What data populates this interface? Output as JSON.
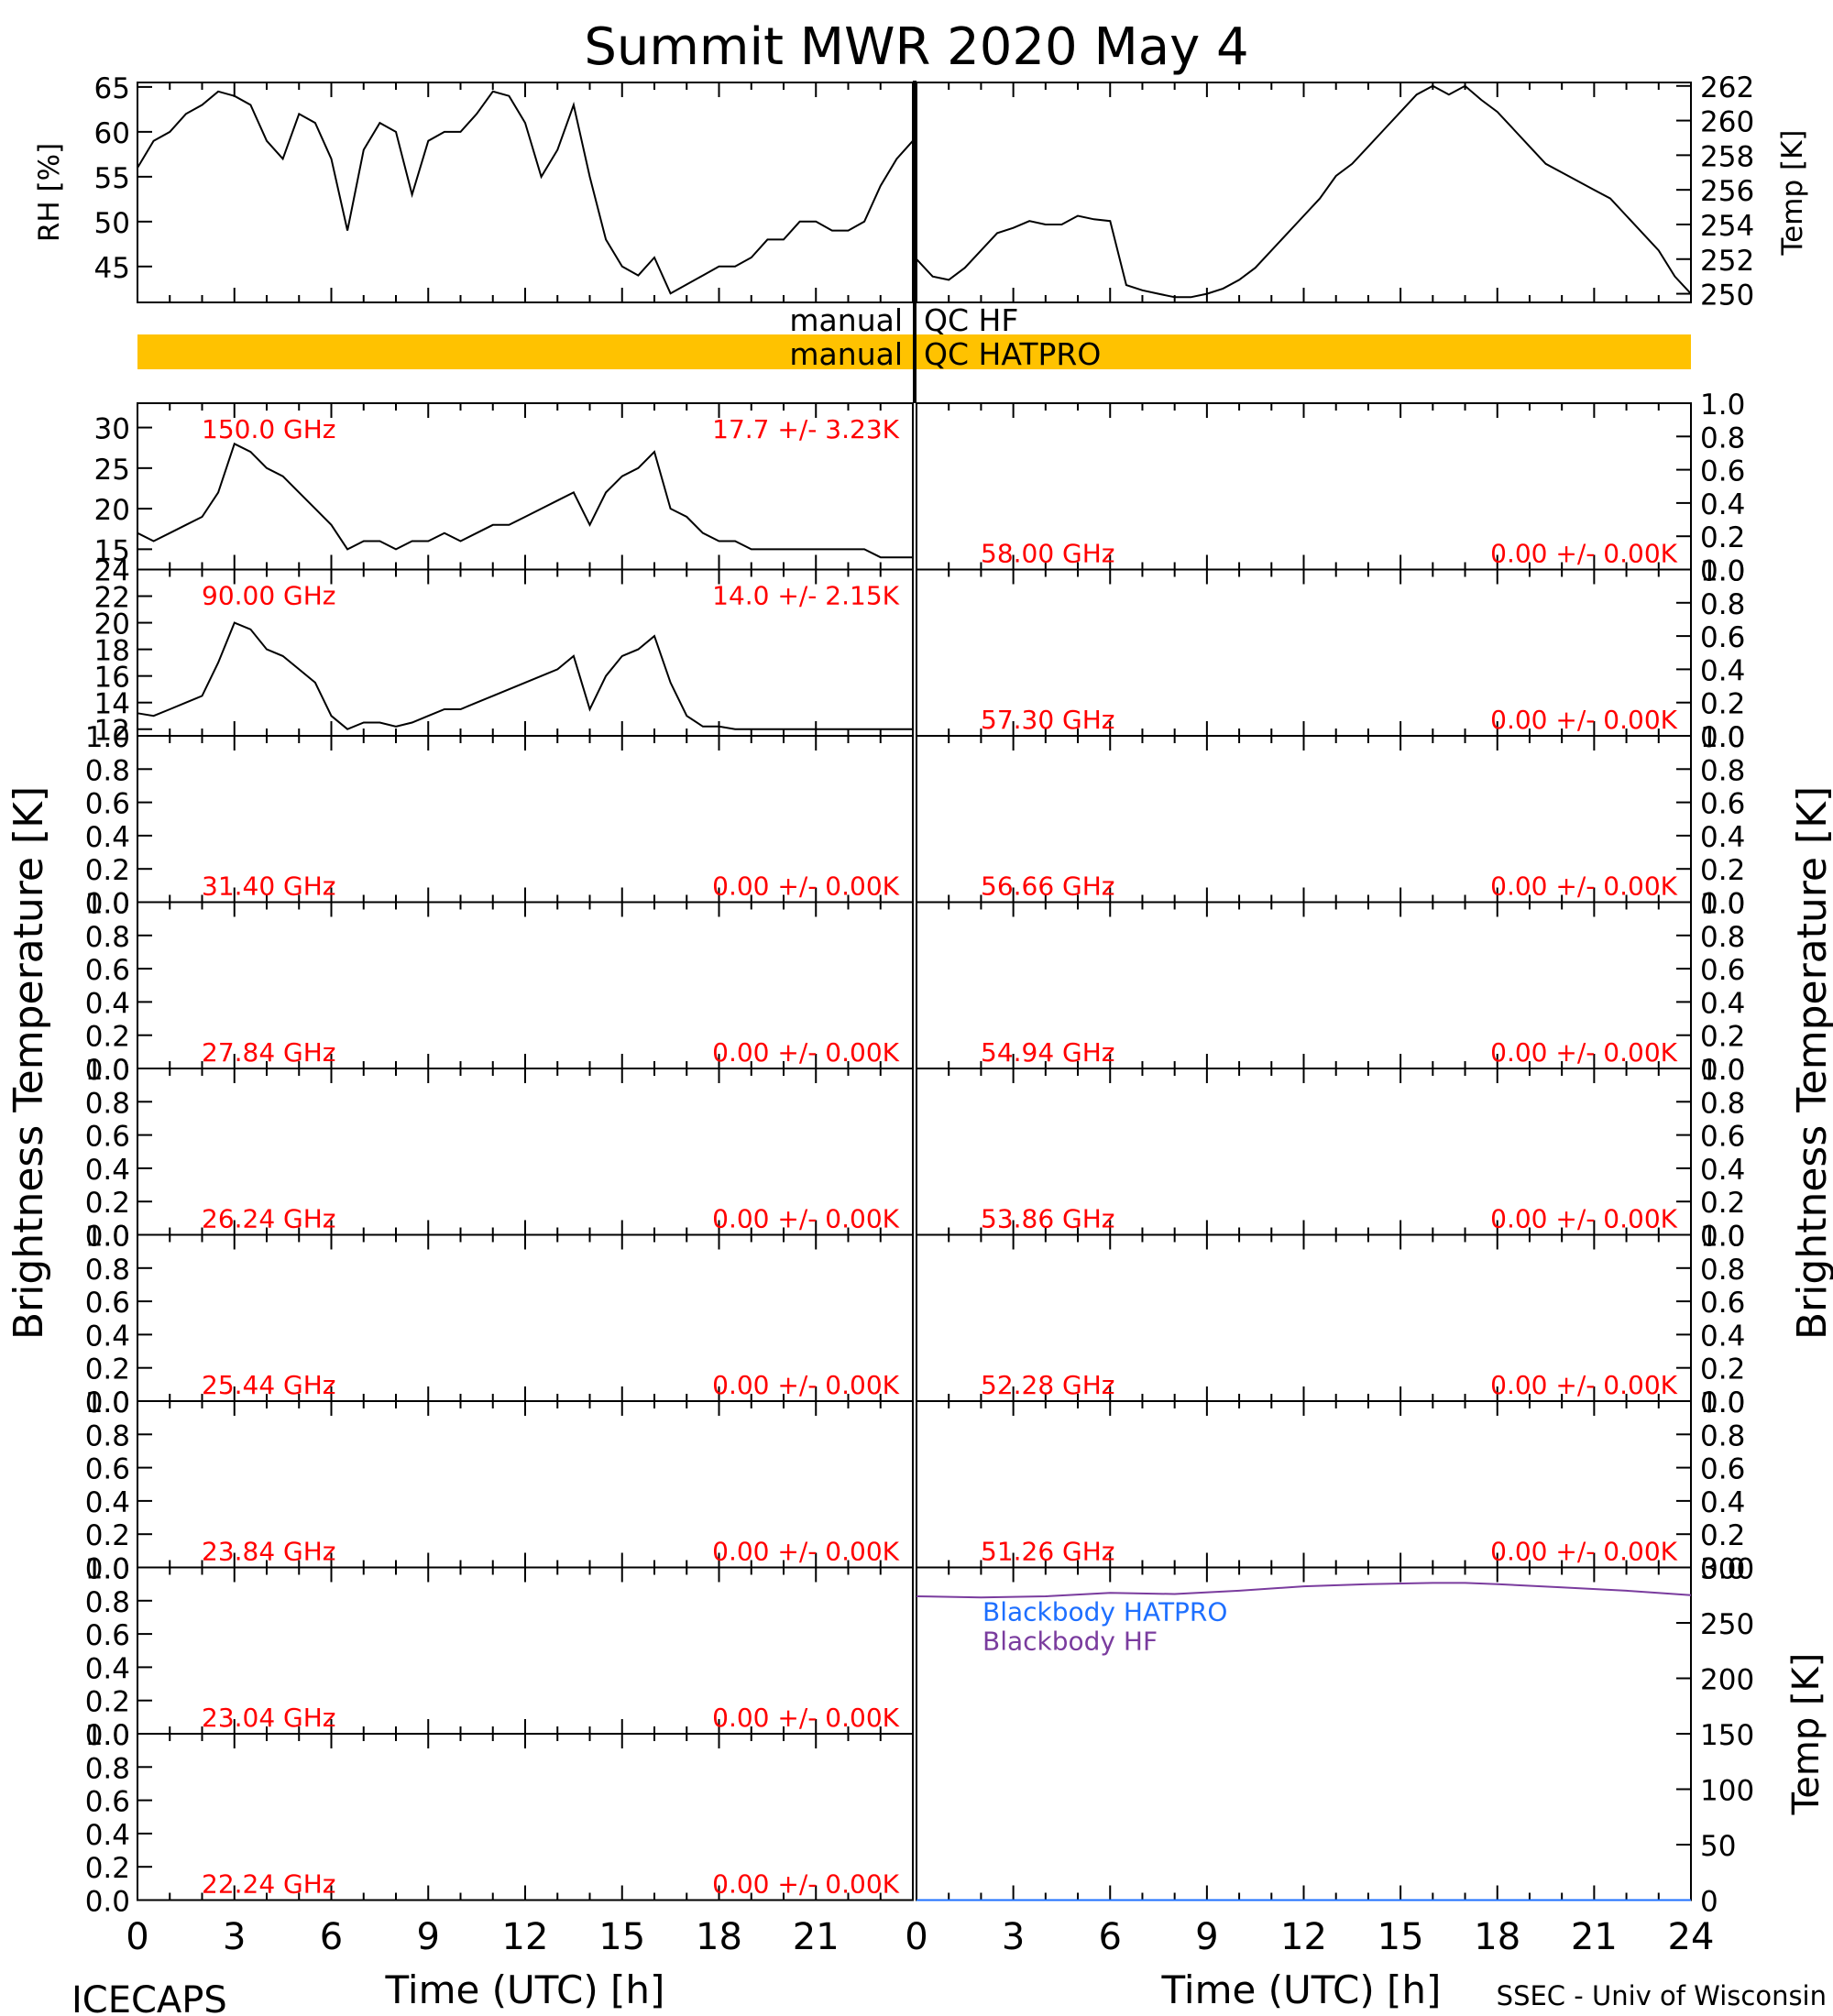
{
  "chart_data": {
    "type": "line",
    "title": "Summit MWR 2020 May  4",
    "footer_left": "ICECAPS",
    "footer_right": "SSEC - Univ of Wisconsin",
    "xlabel": "Time (UTC) [h]",
    "xlim": [
      0,
      24
    ],
    "xticks": [
      "0",
      "3",
      "6",
      "9",
      "12",
      "15",
      "18",
      "21",
      "0",
      "3",
      "6",
      "9",
      "12",
      "15",
      "18",
      "21",
      "24"
    ],
    "brightness_ylabel": "Brightness Temperature [K]",
    "colors": {
      "ink": "#000000",
      "label_red": "#ff0000",
      "qc_bar": "#ffc200",
      "hatpro_blue": "#1e6fff",
      "hf_purple": "#7a3c9e"
    },
    "met": {
      "rh": {
        "ylabel": "RH [%]",
        "ylim": [
          41,
          65.5
        ],
        "ticks": [
          45,
          50,
          55,
          60,
          65
        ],
        "x": [
          0,
          0.5,
          1,
          1.5,
          2,
          2.5,
          3,
          3.5,
          4,
          4.5,
          5,
          5.5,
          6,
          6.5,
          7,
          7.5,
          8,
          8.5,
          9,
          9.5,
          10,
          10.5,
          11,
          11.5,
          12,
          12.5,
          13,
          13.5,
          14,
          14.5,
          15,
          15.5,
          16,
          16.5,
          17,
          17.5,
          18,
          18.5,
          19,
          19.5,
          20,
          20.5,
          21,
          21.5,
          22,
          22.5,
          23,
          23.5,
          24
        ],
        "y": [
          56,
          59,
          60,
          62,
          63,
          64.5,
          64,
          63,
          59,
          57,
          62,
          61,
          57,
          49,
          58,
          61,
          60,
          53,
          59,
          60,
          60,
          62,
          64.5,
          64,
          61,
          55,
          58,
          63,
          55,
          48,
          45,
          44,
          46,
          42,
          43,
          44,
          45,
          45,
          46,
          48,
          48,
          50,
          50,
          49,
          49,
          50,
          54,
          57,
          59
        ]
      },
      "temp": {
        "ylabel": "Temp [K]",
        "ylim": [
          249.5,
          262.2
        ],
        "ticks": [
          250,
          252,
          254,
          256,
          258,
          260,
          262
        ],
        "x": [
          0,
          0.5,
          1,
          1.5,
          2,
          2.5,
          3,
          3.5,
          4,
          4.5,
          5,
          5.5,
          6,
          6.5,
          7,
          7.5,
          8,
          8.5,
          9,
          9.5,
          10,
          10.5,
          11,
          11.5,
          12,
          12.5,
          13,
          13.5,
          14,
          14.5,
          15,
          15.5,
          16,
          16.5,
          17,
          17.5,
          18,
          18.5,
          19,
          19.5,
          20,
          20.5,
          21,
          21.5,
          22,
          22.5,
          23,
          23.5,
          24
        ],
        "y": [
          252,
          251,
          250.8,
          251.5,
          252.5,
          253.5,
          253.8,
          254.2,
          254,
          254,
          254.5,
          254.3,
          254.2,
          250.5,
          250.2,
          250,
          249.8,
          249.8,
          250,
          250.3,
          250.8,
          251.5,
          252.5,
          253.5,
          254.5,
          255.5,
          256.8,
          257.5,
          258.5,
          259.5,
          260.5,
          261.5,
          262,
          261.5,
          262,
          261.2,
          260.5,
          259.5,
          258.5,
          257.5,
          257,
          256.5,
          256,
          255.5,
          254.5,
          253.5,
          252.5,
          251,
          250
        ]
      }
    },
    "qc": [
      {
        "label": "manual",
        "name": "QC HF",
        "flagged": false
      },
      {
        "label": "manual",
        "name": "QC HATPRO",
        "flagged": true
      }
    ],
    "channels_left": [
      {
        "freq": "150.0 GHz",
        "stats": "17.7 +/-  3.23K",
        "ylim": [
          12.5,
          33
        ],
        "ticks": [
          15,
          20,
          25,
          30
        ],
        "x": [
          0,
          0.5,
          1,
          1.5,
          2,
          2.5,
          3,
          3.5,
          4,
          4.5,
          5,
          5.5,
          6,
          6.5,
          7,
          7.5,
          8,
          8.5,
          9,
          9.5,
          10,
          10.5,
          11,
          11.5,
          12,
          12.5,
          13,
          13.5,
          14,
          14.5,
          15,
          15.5,
          16,
          16.5,
          17,
          17.5,
          18,
          18.5,
          19,
          19.5,
          20,
          20.5,
          21,
          21.5,
          22,
          22.5,
          23,
          23.5,
          24
        ],
        "y": [
          17,
          16,
          17,
          18,
          19,
          22,
          28,
          27,
          25,
          24,
          22,
          20,
          18,
          15,
          16,
          16,
          15,
          16,
          16,
          17,
          16,
          17,
          18,
          18,
          19,
          20,
          21,
          22,
          18,
          22,
          24,
          25,
          27,
          20,
          19,
          17,
          16,
          16,
          15,
          15,
          15,
          15,
          15,
          15,
          15,
          15,
          14,
          14,
          14
        ]
      },
      {
        "freq": "90.00 GHz",
        "stats": "14.0 +/-  2.15K",
        "ylim": [
          11.5,
          24
        ],
        "ticks": [
          12,
          14,
          16,
          18,
          20,
          22,
          24
        ],
        "x": [
          0,
          0.5,
          1,
          1.5,
          2,
          2.5,
          3,
          3.5,
          4,
          4.5,
          5,
          5.5,
          6,
          6.5,
          7,
          7.5,
          8,
          8.5,
          9,
          9.5,
          10,
          10.5,
          11,
          11.5,
          12,
          12.5,
          13,
          13.5,
          14,
          14.5,
          15,
          15.5,
          16,
          16.5,
          17,
          17.5,
          18,
          18.5,
          19,
          19.5,
          20,
          20.5,
          21,
          21.5,
          22,
          22.5,
          23,
          23.5,
          24
        ],
        "y": [
          13.2,
          13,
          13.5,
          14,
          14.5,
          17,
          20,
          19.5,
          18,
          17.5,
          16.5,
          15.5,
          13,
          12,
          12.5,
          12.5,
          12.2,
          12.5,
          13,
          13.5,
          13.5,
          14,
          14.5,
          15,
          15.5,
          16,
          16.5,
          17.5,
          13.5,
          16,
          17.5,
          18,
          19,
          15.5,
          13,
          12.2,
          12.2,
          12,
          12,
          12,
          12,
          12,
          12,
          12,
          12,
          12,
          12,
          12,
          12
        ]
      },
      {
        "freq": "31.40 GHz",
        "stats": "0.00 +/-  0.00K",
        "ylim": [
          0,
          1
        ],
        "ticks": [
          0,
          0.2,
          0.4,
          0.6,
          0.8,
          1.0
        ]
      },
      {
        "freq": "27.84 GHz",
        "stats": "0.00 +/-  0.00K",
        "ylim": [
          0,
          1
        ],
        "ticks": [
          0,
          0.2,
          0.4,
          0.6,
          0.8,
          1.0
        ]
      },
      {
        "freq": "26.24 GHz",
        "stats": "0.00 +/-  0.00K",
        "ylim": [
          0,
          1
        ],
        "ticks": [
          0,
          0.2,
          0.4,
          0.6,
          0.8,
          1.0
        ]
      },
      {
        "freq": "25.44 GHz",
        "stats": "0.00 +/-  0.00K",
        "ylim": [
          0,
          1
        ],
        "ticks": [
          0,
          0.2,
          0.4,
          0.6,
          0.8,
          1.0
        ]
      },
      {
        "freq": "23.84 GHz",
        "stats": "0.00 +/-  0.00K",
        "ylim": [
          0,
          1
        ],
        "ticks": [
          0,
          0.2,
          0.4,
          0.6,
          0.8,
          1.0
        ]
      },
      {
        "freq": "23.04 GHz",
        "stats": "0.00 +/-  0.00K",
        "ylim": [
          0,
          1
        ],
        "ticks": [
          0,
          0.2,
          0.4,
          0.6,
          0.8,
          1.0
        ]
      },
      {
        "freq": "22.24 GHz",
        "stats": "0.00 +/-  0.00K",
        "ylim": [
          0,
          1
        ],
        "ticks": [
          0,
          0.2,
          0.4,
          0.6,
          0.8,
          1.0
        ]
      }
    ],
    "channels_right": [
      {
        "freq": "58.00 GHz",
        "stats": "0.00 +/-  0.00K",
        "ylim": [
          0,
          1
        ],
        "ticks": [
          0,
          0.2,
          0.4,
          0.6,
          0.8,
          1.0
        ]
      },
      {
        "freq": "57.30 GHz",
        "stats": "0.00 +/-  0.00K",
        "ylim": [
          0,
          1
        ],
        "ticks": [
          0,
          0.2,
          0.4,
          0.6,
          0.8,
          1.0
        ]
      },
      {
        "freq": "56.66 GHz",
        "stats": "0.00 +/-  0.00K",
        "ylim": [
          0,
          1
        ],
        "ticks": [
          0,
          0.2,
          0.4,
          0.6,
          0.8,
          1.0
        ]
      },
      {
        "freq": "54.94 GHz",
        "stats": "0.00 +/-  0.00K",
        "ylim": [
          0,
          1
        ],
        "ticks": [
          0,
          0.2,
          0.4,
          0.6,
          0.8,
          1.0
        ]
      },
      {
        "freq": "53.86 GHz",
        "stats": "0.00 +/-  0.00K",
        "ylim": [
          0,
          1
        ],
        "ticks": [
          0,
          0.2,
          0.4,
          0.6,
          0.8,
          1.0
        ]
      },
      {
        "freq": "52.28 GHz",
        "stats": "0.00 +/-  0.00K",
        "ylim": [
          0,
          1
        ],
        "ticks": [
          0,
          0.2,
          0.4,
          0.6,
          0.8,
          1.0
        ]
      },
      {
        "freq": "51.26 GHz",
        "stats": "0.00 +/-  0.00K",
        "ylim": [
          0,
          1
        ],
        "ticks": [
          0,
          0.2,
          0.4,
          0.6,
          0.8,
          1.0
        ]
      }
    ],
    "blackbody": {
      "ylabel": "Temp [K]",
      "ylim": [
        0,
        300
      ],
      "ticks": [
        0,
        50,
        100,
        150,
        200,
        250,
        300
      ],
      "series": [
        {
          "name": "Blackbody HATPRO",
          "color": "#1e6fff",
          "x": [
            0,
            24
          ],
          "y": [
            0,
            0
          ]
        },
        {
          "name": "Blackbody HF",
          "color": "#7a3c9e",
          "x": [
            0,
            2,
            4,
            6,
            8,
            10,
            12,
            14,
            16,
            17,
            18,
            20,
            22,
            24
          ],
          "y": [
            274,
            273,
            274,
            277,
            276,
            279,
            283,
            285,
            286,
            286,
            285,
            282,
            279,
            275
          ]
        }
      ]
    }
  }
}
